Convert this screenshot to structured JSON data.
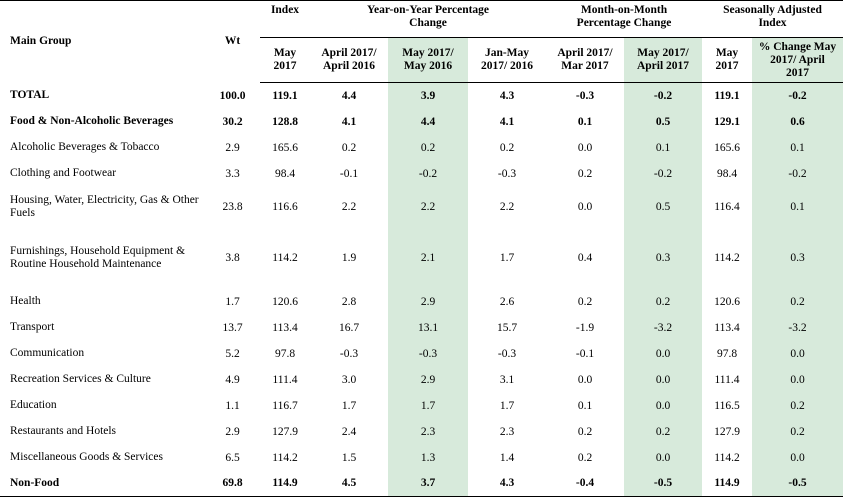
{
  "headers": {
    "main_group": "Main Group",
    "wt": "Wt",
    "index_group": "Index",
    "yoy_group": "Year-on-Year Percentage Change",
    "mom_group": "Month-on-Month Percentage Change",
    "sa_group": "Seasonally Adjusted Index",
    "sub": [
      "May 2017",
      "April 2017/ April 2016",
      "May 2017/ May 2016",
      "Jan-May 2017/ 2016",
      "April 2017/ Mar 2017",
      "May 2017/ April 2017",
      "May 2017",
      "% Change May 2017/ April 2017"
    ]
  },
  "colors": {
    "highlight": "#d7eadb"
  },
  "rows": [
    {
      "name": "TOTAL",
      "bold": true,
      "h": 26,
      "values": [
        "100.0",
        "119.1",
        "4.4",
        "3.9",
        "4.3",
        "-0.3",
        "-0.2",
        "119.1",
        "-0.2"
      ]
    },
    {
      "name": "Food & Non-Alcoholic Beverages",
      "bold": true,
      "h": 26,
      "values": [
        "30.2",
        "128.8",
        "4.1",
        "4.4",
        "4.1",
        "0.1",
        "0.5",
        "129.1",
        "0.6"
      ]
    },
    {
      "name": "Alcoholic Beverages & Tobacco",
      "bold": false,
      "h": 26,
      "values": [
        "2.9",
        "165.6",
        "0.2",
        "0.2",
        "0.2",
        "0.0",
        "0.1",
        "165.6",
        "0.1"
      ]
    },
    {
      "name": "Clothing and Footwear",
      "bold": false,
      "h": 26,
      "values": [
        "3.3",
        "98.4",
        "-0.1",
        "-0.2",
        "-0.3",
        "0.2",
        "-0.2",
        "98.4",
        "-0.2"
      ]
    },
    {
      "name": "Housing, Water, Electricity, Gas & Other Fuels",
      "bold": false,
      "h": 40,
      "values": [
        "23.8",
        "116.6",
        "2.2",
        "2.2",
        "2.2",
        "0.0",
        "0.5",
        "116.4",
        "0.1"
      ]
    },
    {
      "name": "Furnishings, Household Equipment & Routine Household Maintenance",
      "bold": false,
      "h": 62,
      "values": [
        "3.8",
        "114.2",
        "1.9",
        "2.1",
        "1.7",
        "0.4",
        "0.3",
        "114.2",
        "0.3"
      ]
    },
    {
      "name": "Health",
      "bold": false,
      "h": 26,
      "values": [
        "1.7",
        "120.6",
        "2.8",
        "2.9",
        "2.6",
        "0.2",
        "0.2",
        "120.6",
        "0.2"
      ]
    },
    {
      "name": "Transport",
      "bold": false,
      "h": 26,
      "values": [
        "13.7",
        "113.4",
        "16.7",
        "13.1",
        "15.7",
        "-1.9",
        "-3.2",
        "113.4",
        "-3.2"
      ]
    },
    {
      "name": "Communication",
      "bold": false,
      "h": 26,
      "values": [
        "5.2",
        "97.8",
        "-0.3",
        "-0.3",
        "-0.3",
        "-0.1",
        "0.0",
        "97.8",
        "0.0"
      ]
    },
    {
      "name": "Recreation Services & Culture",
      "bold": false,
      "h": 26,
      "values": [
        "4.9",
        "111.4",
        "3.0",
        "2.9",
        "3.1",
        "0.0",
        "0.0",
        "111.4",
        "0.0"
      ]
    },
    {
      "name": "Education",
      "bold": false,
      "h": 26,
      "values": [
        "1.1",
        "116.7",
        "1.7",
        "1.7",
        "1.7",
        "0.1",
        "0.0",
        "116.5",
        "0.2"
      ]
    },
    {
      "name": "Restaurants and Hotels",
      "bold": false,
      "h": 26,
      "values": [
        "2.9",
        "127.9",
        "2.4",
        "2.3",
        "2.3",
        "0.2",
        "0.2",
        "127.9",
        "0.2"
      ]
    },
    {
      "name": "Miscellaneous Goods & Services",
      "bold": false,
      "h": 26,
      "values": [
        "6.5",
        "114.2",
        "1.5",
        "1.3",
        "1.4",
        "0.2",
        "0.0",
        "114.2",
        "0.0"
      ]
    },
    {
      "name": "Non-Food",
      "bold": true,
      "h": 26,
      "values": [
        "69.8",
        "114.9",
        "4.5",
        "3.7",
        "4.3",
        "-0.4",
        "-0.5",
        "114.9",
        "-0.5"
      ]
    }
  ]
}
